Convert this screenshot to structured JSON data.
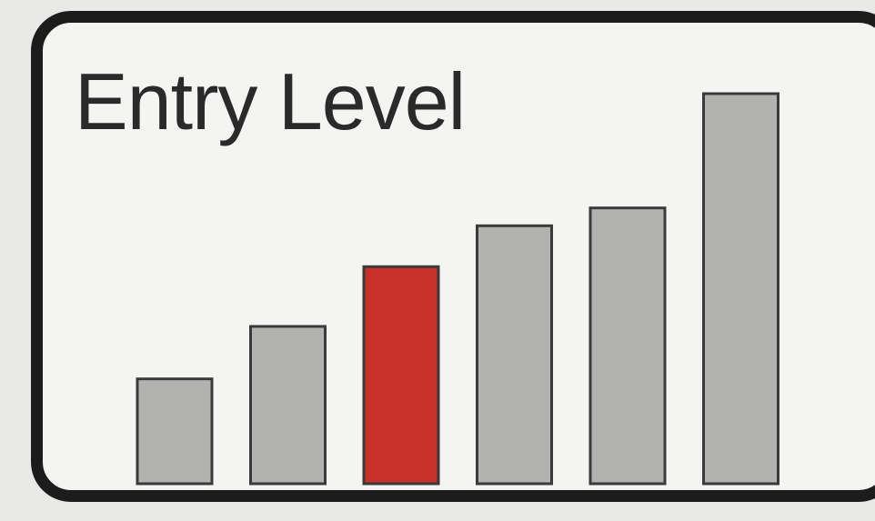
{
  "chart_data": {
    "type": "bar",
    "title": "Entry Level",
    "values": [
      1,
      1.5,
      2.07,
      2.46,
      2.63,
      3.72
    ],
    "highlight_index": 2,
    "ylim": [
      0,
      3.72
    ],
    "grid": false,
    "legend": "none"
  },
  "colors": {
    "bar": "#b2b2b0",
    "highlight": "#c8302a",
    "border": "#1c1c1c",
    "bar_outline": "#3a3a3a"
  }
}
